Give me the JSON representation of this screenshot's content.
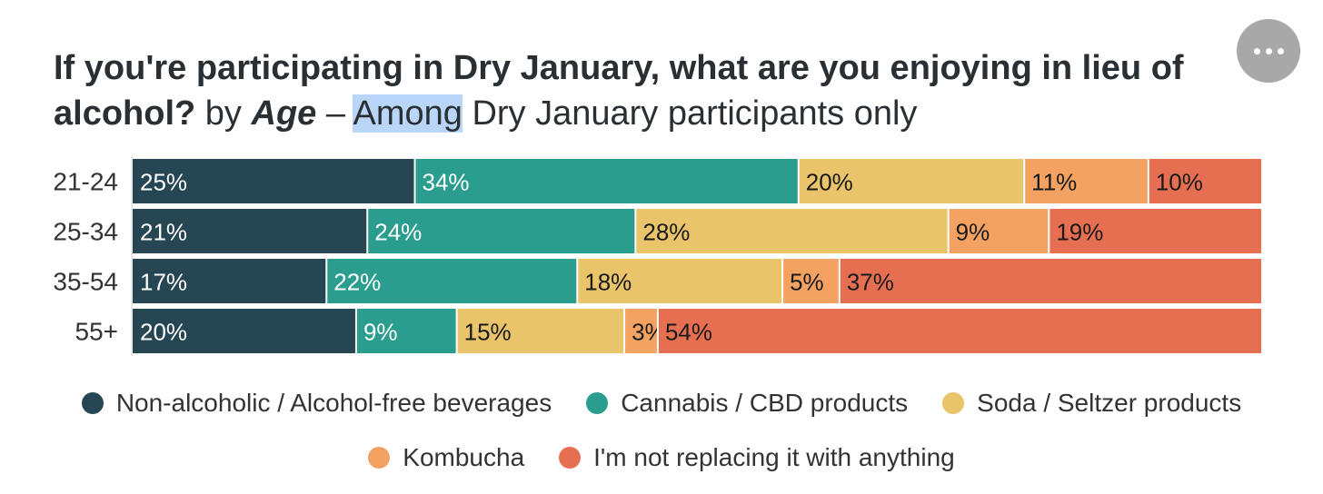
{
  "title": {
    "main": "If you're participating in Dry January, what are you enjoying in lieu of alcohol?",
    "by": "by",
    "dimension": "Age",
    "dash": "–",
    "highlight": "Among",
    "subtitle_rest": "Dry January participants only"
  },
  "more_button": {
    "icon": "more-horizontal-icon"
  },
  "chart_data": {
    "type": "bar",
    "orientation": "horizontal",
    "stacked": true,
    "normalized_to_100": true,
    "categories": [
      "21-24",
      "25-34",
      "35-54",
      "55+"
    ],
    "series": [
      {
        "name": "Non-alcoholic / Alcohol-free beverages",
        "color": "#264653",
        "values": [
          25,
          21,
          17,
          20
        ],
        "labels": [
          "25%",
          "21%",
          "17%",
          "20%"
        ],
        "label_color": "#ffffff"
      },
      {
        "name": "Cannabis / CBD products",
        "color": "#2a9d8f",
        "values": [
          34,
          24,
          22,
          9
        ],
        "labels": [
          "34%",
          "24%",
          "22%",
          "9%"
        ],
        "label_color": "#ffffff"
      },
      {
        "name": "Soda / Seltzer products",
        "color": "#e9c46a",
        "values": [
          20,
          28,
          18,
          15
        ],
        "labels": [
          "20%",
          "28%",
          "18%",
          "15%"
        ],
        "label_color": "#1a1a1a"
      },
      {
        "name": "Kombucha",
        "color": "#f4a261",
        "values": [
          11,
          9,
          5,
          3
        ],
        "labels": [
          "11%",
          "9%",
          "5%",
          "3%"
        ],
        "label_color": "#1a1a1a"
      },
      {
        "name": "I'm not replacing it with anything",
        "color": "#e76f51",
        "values": [
          10,
          19,
          37,
          54
        ],
        "labels": [
          "10%",
          "19%",
          "37%",
          "54%"
        ],
        "label_color": "#1a1a1a"
      }
    ],
    "legend_position": "bottom",
    "grid": false
  }
}
